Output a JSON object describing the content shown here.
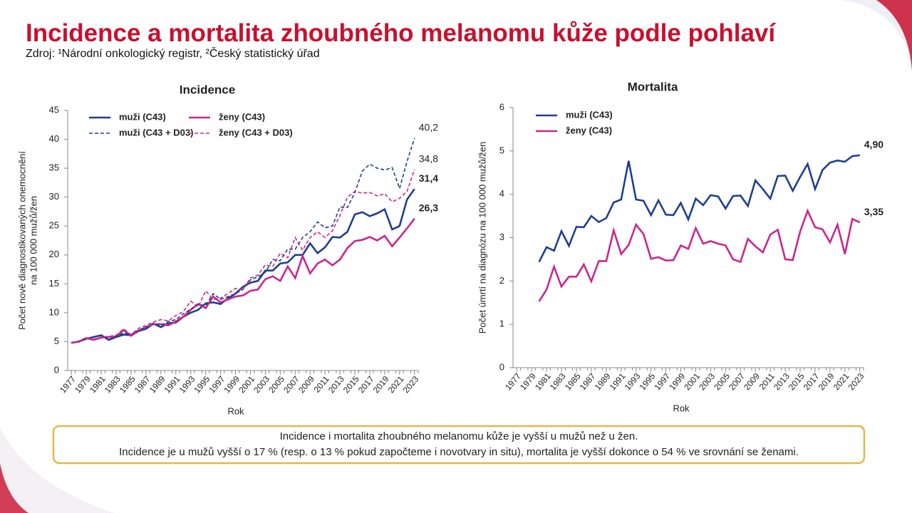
{
  "title": "Incidence a mortalita zhoubného melanomu kůže podle pohlaví",
  "source": "Zdroj: ¹Národní onkologický registr, ²Český statistický úřad",
  "note": [
    "Incidence i mortalita zhoubného melanomu kůže je vyšší u mužů než u žen.",
    "Incidence je u mužů vyšší o 17 % (resp. o 13 % pokud započteme i novotvary in situ), mortalita je vyšší dokonce o 54 % ve srovnání se ženami."
  ],
  "chart_data": [
    {
      "type": "line",
      "title": "Incidence",
      "xlabel": "Rok",
      "ylabel": [
        "Počet nově diagnostikovaných onemocnění",
        "na 100 000 mužů/žen"
      ],
      "x": [
        1977,
        1978,
        1979,
        1980,
        1981,
        1982,
        1983,
        1984,
        1985,
        1986,
        1987,
        1988,
        1989,
        1990,
        1991,
        1992,
        1993,
        1994,
        1995,
        1996,
        1997,
        1998,
        1999,
        2000,
        2001,
        2002,
        2003,
        2004,
        2005,
        2006,
        2007,
        2008,
        2009,
        2010,
        2011,
        2012,
        2013,
        2014,
        2015,
        2016,
        2017,
        2018,
        2019,
        2020,
        2021,
        2022,
        2023
      ],
      "xlim": [
        1976.5,
        2023.5
      ],
      "xticks": [
        1977,
        1979,
        1981,
        1983,
        1985,
        1987,
        1989,
        1991,
        1993,
        1995,
        1997,
        1999,
        2001,
        2003,
        2005,
        2007,
        2009,
        2011,
        2013,
        2015,
        2017,
        2019,
        2021,
        2023
      ],
      "ylim": [
        0,
        45
      ],
      "yticks": [
        0,
        5,
        10,
        15,
        20,
        25,
        30,
        35,
        40,
        45
      ],
      "grid": false,
      "legend_columns": 2,
      "series": [
        {
          "name": "muži (C43)",
          "color": "#1f3f8f",
          "dashed": false,
          "values": [
            4.8,
            5.0,
            5.5,
            5.8,
            6.1,
            5.3,
            5.8,
            6.2,
            6.1,
            6.8,
            7.2,
            8.1,
            7.5,
            8.2,
            8.3,
            9.3,
            10.0,
            10.5,
            11.6,
            11.8,
            11.5,
            12.5,
            13.3,
            14.5,
            15.2,
            15.5,
            17.3,
            17.3,
            18.5,
            18.7,
            20.0,
            20.0,
            22.0,
            20.3,
            21.3,
            23.1,
            23.0,
            24.0,
            27.0,
            27.4,
            26.7,
            27.2,
            27.9,
            24.4,
            25.0,
            29.6,
            31.4
          ],
          "value_labels": [
            null,
            null,
            null,
            null,
            null,
            null,
            null,
            null,
            null,
            null,
            null,
            null,
            null,
            null,
            null,
            null,
            null,
            null,
            null,
            null,
            null,
            null,
            null,
            null,
            null,
            null,
            null,
            null,
            null,
            null,
            null,
            null,
            null,
            null,
            null,
            null,
            null,
            null,
            null,
            null,
            null,
            null,
            null,
            null,
            null,
            null,
            "31,4"
          ]
        },
        {
          "name": "ženy (C43)",
          "color": "#c8288c",
          "dashed": false,
          "values": [
            4.8,
            5.0,
            5.6,
            5.3,
            5.7,
            5.8,
            5.9,
            7.0,
            6.0,
            6.9,
            7.5,
            8.0,
            8.0,
            7.8,
            8.5,
            9.3,
            10.5,
            11.5,
            10.8,
            12.8,
            11.8,
            12.3,
            12.8,
            13.0,
            13.8,
            14.0,
            15.8,
            16.3,
            15.5,
            18.0,
            16.0,
            19.8,
            16.8,
            18.5,
            19.2,
            18.2,
            19.2,
            21.2,
            22.4,
            22.6,
            23.1,
            22.5,
            23.3,
            21.5,
            23.0,
            24.6,
            26.3
          ],
          "value_labels": [
            null,
            null,
            null,
            null,
            null,
            null,
            null,
            null,
            null,
            null,
            null,
            null,
            null,
            null,
            null,
            null,
            null,
            null,
            null,
            null,
            null,
            null,
            null,
            null,
            null,
            null,
            null,
            null,
            null,
            null,
            null,
            null,
            null,
            null,
            null,
            null,
            null,
            null,
            null,
            null,
            null,
            null,
            null,
            null,
            null,
            null,
            "26,3"
          ]
        },
        {
          "name": "muži (C43 + D03)",
          "color": "#1f3f8f",
          "dashed": true,
          "values": [
            4.8,
            5.0,
            5.5,
            5.8,
            6.1,
            5.4,
            5.9,
            6.5,
            6.2,
            7.0,
            7.5,
            8.2,
            7.8,
            8.5,
            8.8,
            9.8,
            10.6,
            11.5,
            11.2,
            13.3,
            12.3,
            12.8,
            13.3,
            14.0,
            15.7,
            16.2,
            17.0,
            19.2,
            19.0,
            21.0,
            21.0,
            23.0,
            24.0,
            25.7,
            24.7,
            25.0,
            28.3,
            28.2,
            30.8,
            34.5,
            35.7,
            35.0,
            34.7,
            35.1,
            31.5,
            36.2,
            40.2
          ],
          "value_labels": [
            null,
            null,
            null,
            null,
            null,
            null,
            null,
            null,
            null,
            null,
            null,
            null,
            null,
            null,
            null,
            null,
            null,
            null,
            null,
            null,
            null,
            null,
            null,
            null,
            null,
            null,
            null,
            null,
            null,
            null,
            null,
            null,
            null,
            null,
            null,
            null,
            null,
            null,
            null,
            null,
            null,
            null,
            null,
            null,
            null,
            null,
            "40,2"
          ]
        },
        {
          "name": "ženy (C43 + D03)",
          "color": "#c8288c",
          "dashed": true,
          "values": [
            4.8,
            5.1,
            5.7,
            5.4,
            5.8,
            5.9,
            6.1,
            7.2,
            6.2,
            7.3,
            7.8,
            8.4,
            8.8,
            8.6,
            9.5,
            10.2,
            12.0,
            11.0,
            13.8,
            12.3,
            12.5,
            13.3,
            14.2,
            14.0,
            16.0,
            16.5,
            18.3,
            18.0,
            20.3,
            19.5,
            23.0,
            20.8,
            23.0,
            24.0,
            23.0,
            24.2,
            26.8,
            30.0,
            31.0,
            30.7,
            30.8,
            30.2,
            30.6,
            29.2,
            29.8,
            31.0,
            34.8
          ],
          "value_labels": [
            null,
            null,
            null,
            null,
            null,
            null,
            null,
            null,
            null,
            null,
            null,
            null,
            null,
            null,
            null,
            null,
            null,
            null,
            null,
            null,
            null,
            null,
            null,
            null,
            null,
            null,
            null,
            null,
            null,
            null,
            null,
            null,
            null,
            null,
            null,
            null,
            null,
            null,
            null,
            null,
            null,
            null,
            null,
            null,
            null,
            null,
            "34,8"
          ]
        }
      ]
    },
    {
      "type": "line",
      "title": "Mortalita",
      "xlabel": "Rok",
      "ylabel": [
        "Počet úmrtí na diagnózu na 100 000 mužů/žen"
      ],
      "x": [
        1977,
        1978,
        1979,
        1980,
        1981,
        1982,
        1983,
        1984,
        1985,
        1986,
        1987,
        1988,
        1989,
        1990,
        1991,
        1992,
        1993,
        1994,
        1995,
        1996,
        1997,
        1998,
        1999,
        2000,
        2001,
        2002,
        2003,
        2004,
        2005,
        2006,
        2007,
        2008,
        2009,
        2010,
        2011,
        2012,
        2013,
        2014,
        2015,
        2016,
        2017,
        2018,
        2019,
        2020,
        2021,
        2022,
        2023
      ],
      "xlim": [
        1976.5,
        2023.5
      ],
      "xticks": [
        1977,
        1979,
        1981,
        1983,
        1985,
        1987,
        1989,
        1991,
        1993,
        1995,
        1997,
        1999,
        2001,
        2003,
        2005,
        2007,
        2009,
        2011,
        2013,
        2015,
        2017,
        2019,
        2021,
        2023
      ],
      "ylim": [
        0,
        6
      ],
      "yticks": [
        0,
        1,
        2,
        3,
        4,
        5,
        6
      ],
      "grid": false,
      "legend_columns": 1,
      "series": [
        {
          "name": "muži (C43)",
          "color": "#1f3f8f",
          "dashed": false,
          "values": [
            null,
            null,
            null,
            2.44,
            2.78,
            2.7,
            3.15,
            2.81,
            3.25,
            3.24,
            3.5,
            3.36,
            3.45,
            3.81,
            3.88,
            4.77,
            3.88,
            3.85,
            3.52,
            3.86,
            3.53,
            3.52,
            3.8,
            3.42,
            3.9,
            3.75,
            3.98,
            3.95,
            3.67,
            3.96,
            3.97,
            3.73,
            4.32,
            4.12,
            3.9,
            4.42,
            4.43,
            4.08,
            4.4,
            4.7,
            4.12,
            4.56,
            4.73,
            4.78,
            4.75,
            4.88,
            4.9
          ],
          "value_labels": [
            null,
            null,
            null,
            null,
            null,
            null,
            null,
            null,
            null,
            null,
            null,
            null,
            null,
            null,
            null,
            null,
            null,
            null,
            null,
            null,
            null,
            null,
            null,
            null,
            null,
            null,
            null,
            null,
            null,
            null,
            null,
            null,
            null,
            null,
            null,
            null,
            null,
            null,
            null,
            null,
            null,
            null,
            null,
            null,
            null,
            null,
            "4,90"
          ]
        },
        {
          "name": "ženy (C43)",
          "color": "#c8288c",
          "dashed": false,
          "values": [
            null,
            null,
            null,
            1.53,
            1.8,
            2.33,
            1.87,
            2.1,
            2.1,
            2.38,
            1.99,
            2.46,
            2.46,
            3.17,
            2.62,
            2.83,
            3.3,
            3.08,
            2.51,
            2.55,
            2.47,
            2.48,
            2.82,
            2.74,
            3.22,
            2.86,
            2.92,
            2.86,
            2.82,
            2.5,
            2.44,
            2.97,
            2.8,
            2.66,
            3.07,
            3.18,
            2.5,
            2.48,
            3.14,
            3.62,
            3.24,
            3.19,
            2.89,
            3.3,
            2.62,
            3.43,
            3.35
          ],
          "value_labels": [
            null,
            null,
            null,
            null,
            null,
            null,
            null,
            null,
            null,
            null,
            null,
            null,
            null,
            null,
            null,
            null,
            null,
            null,
            null,
            null,
            null,
            null,
            null,
            null,
            null,
            null,
            null,
            null,
            null,
            null,
            null,
            null,
            null,
            null,
            null,
            null,
            null,
            null,
            null,
            null,
            null,
            null,
            null,
            null,
            null,
            null,
            "3,35"
          ]
        }
      ]
    }
  ]
}
